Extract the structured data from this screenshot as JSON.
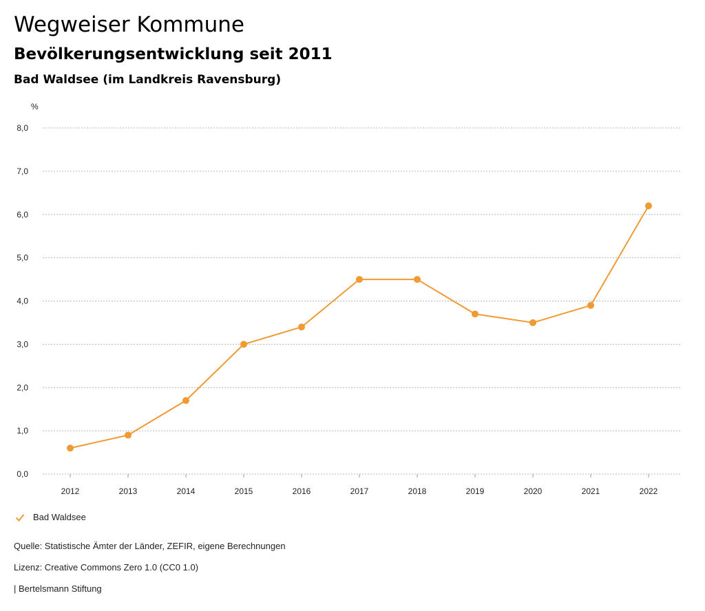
{
  "header": {
    "title": "Wegweiser Kommune",
    "subtitle": "Bevölkerungsentwicklung seit 2011",
    "region": "Bad Waldsee (im Landkreis Ravensburg)"
  },
  "chart_data": {
    "type": "line",
    "unit_label": "%",
    "x": [
      "2012",
      "2013",
      "2014",
      "2015",
      "2016",
      "2017",
      "2018",
      "2019",
      "2020",
      "2021",
      "2022"
    ],
    "series": [
      {
        "name": "Bad Waldsee",
        "values": [
          0.6,
          0.9,
          1.7,
          3.0,
          3.4,
          4.5,
          4.5,
          3.7,
          3.5,
          3.9,
          6.2
        ],
        "color": "#ef9a33"
      }
    ],
    "y_ticks": [
      "0,0",
      "1,0",
      "2,0",
      "3,0",
      "4,0",
      "5,0",
      "6,0",
      "7,0",
      "8,0"
    ],
    "ylim": [
      0,
      8
    ],
    "grid": true,
    "legend_position": "bottom-left"
  },
  "legend": {
    "label": "Bad Waldsee"
  },
  "footer": {
    "source": "Quelle: Statistische Ämter der Länder, ZEFIR, eigene Berechnungen",
    "license": "Lizenz: Creative Commons Zero 1.0 (CC0 1.0)",
    "publisher": "| Bertelsmann Stiftung"
  }
}
